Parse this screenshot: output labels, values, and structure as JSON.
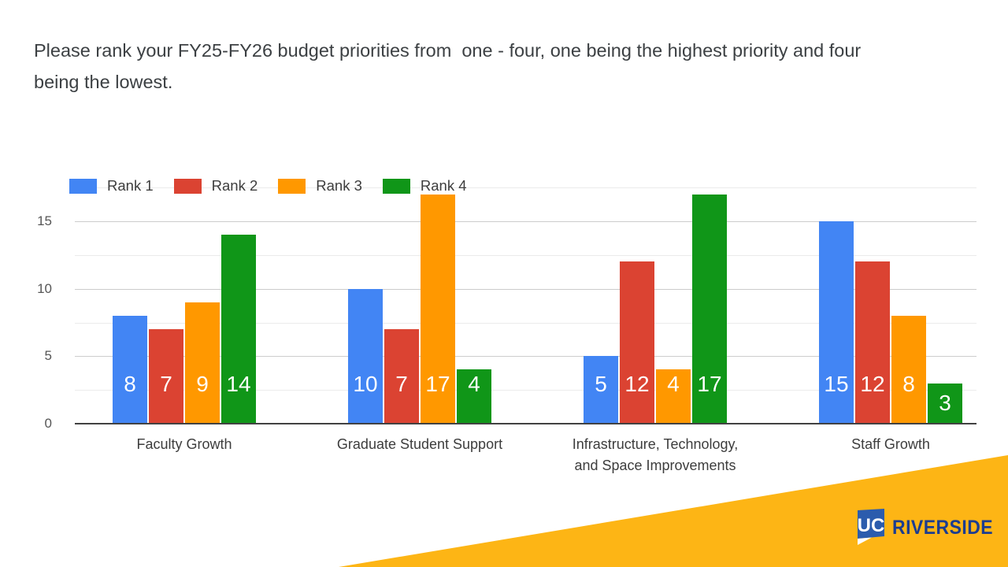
{
  "title": "Please rank your FY25-FY26 budget priorities from  one - four, one being the highest priority and four\nbeing the lowest.",
  "chart_data": {
    "type": "bar",
    "categories": [
      "Faculty Growth",
      "Graduate Student Support",
      "Infrastructure, Technology,\nand Space Improvements",
      "Staff Growth"
    ],
    "series": [
      {
        "name": "Rank 1",
        "color": "#4285F4",
        "values": [
          8,
          10,
          5,
          15
        ]
      },
      {
        "name": "Rank 2",
        "color": "#DB4332",
        "values": [
          7,
          7,
          12,
          12
        ]
      },
      {
        "name": "Rank 3",
        "color": "#FF9800",
        "values": [
          9,
          17,
          4,
          8
        ]
      },
      {
        "name": "Rank 4",
        "color": "#109618",
        "values": [
          14,
          4,
          17,
          3
        ]
      }
    ],
    "ylim": [
      0,
      17.5
    ],
    "yticks": [
      0,
      5,
      10,
      15
    ],
    "grid": true,
    "legend_position": "top-left",
    "bar_labels": true,
    "bar_label_color": "#ffffff"
  },
  "footer": {
    "logo_mark_text": "UC",
    "logo_wordmark": "RIVERSIDE",
    "gold": "#FDB515",
    "mark_box_blue": "#2B5CAD",
    "wordmark_navy": "#1C3D90"
  }
}
